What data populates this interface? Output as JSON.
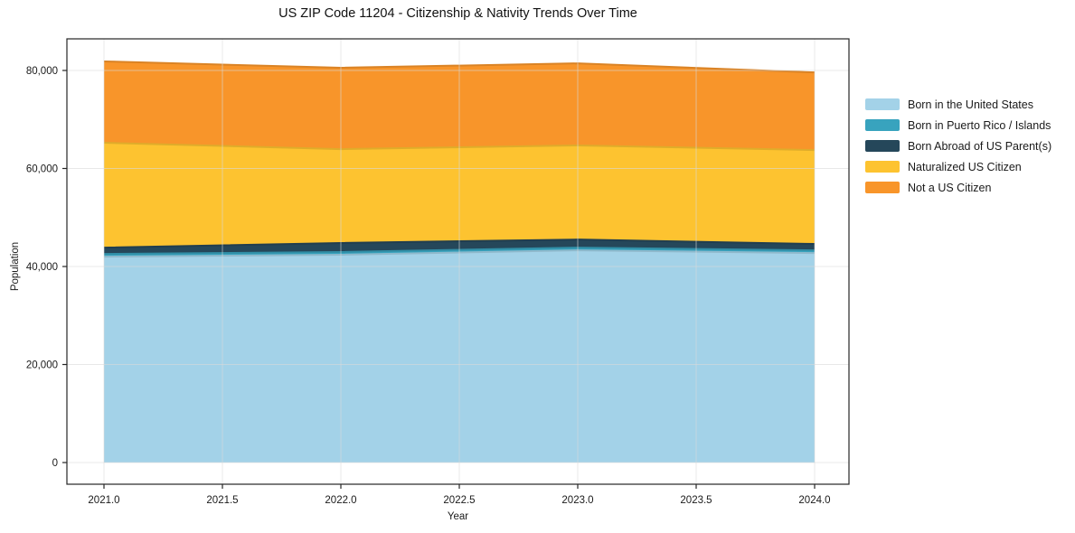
{
  "chart_data": {
    "type": "area",
    "stacked": true,
    "title": "US ZIP Code 11204 - Citizenship & Nativity Trends Over Time",
    "xlabel": "Year",
    "ylabel": "Population",
    "x": [
      2021,
      2022,
      2023,
      2024
    ],
    "series": [
      {
        "name": "Born in the United States",
        "color": "#a3d2e8",
        "values": [
          42000,
          42400,
          43300,
          42750
        ]
      },
      {
        "name": "Born in Puerto Rico / Islands",
        "color": "#38a3be",
        "values": [
          550,
          550,
          550,
          550
        ]
      },
      {
        "name": "Born Abroad of US Parent(s)",
        "color": "#25475a",
        "values": [
          1300,
          1850,
          1650,
          1300
        ]
      },
      {
        "name": "Naturalized US Citizen",
        "color": "#fdc330",
        "values": [
          21400,
          19150,
          19200,
          19150
        ]
      },
      {
        "name": "Not a US Citizen",
        "color": "#f8952a",
        "values": [
          16600,
          16600,
          16750,
          15850
        ]
      }
    ],
    "totals": [
      81850,
      80550,
      81450,
      79600
    ],
    "xlim": [
      2020.8435,
      2024.145
    ],
    "ylim": [
      -4424,
      86450
    ],
    "xticks": {
      "values": [
        2021.0,
        2021.5,
        2022.0,
        2022.5,
        2023.0,
        2023.5,
        2024.0
      ],
      "labels": [
        "2021.0",
        "2021.5",
        "2022.0",
        "2022.5",
        "2023.0",
        "2023.5",
        "2024.0"
      ]
    },
    "yticks": {
      "values": [
        0,
        20000,
        40000,
        60000,
        80000
      ],
      "labels": [
        "0",
        "20,000",
        "40,000",
        "60,000",
        "80,000"
      ]
    },
    "grid": true,
    "legend": {
      "position": "outside-right",
      "frame": false
    }
  },
  "style": {
    "frame_color": "#262626",
    "grid_color": "#d8d8d8",
    "tick_label_color": "#1a1a1a",
    "background": "#ffffff"
  }
}
